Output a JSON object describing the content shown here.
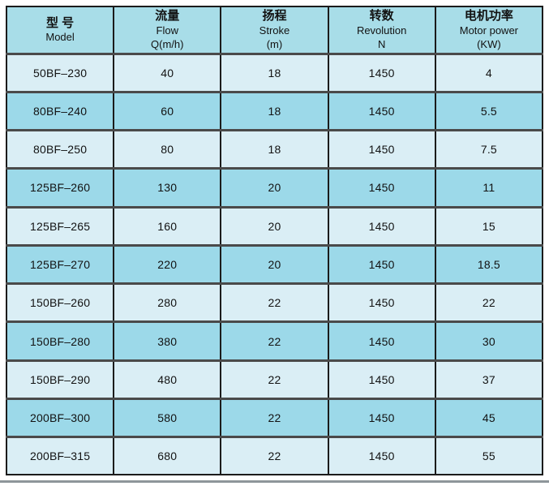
{
  "chart_data": {
    "type": "table",
    "columns": [
      {
        "zh": "型 号",
        "en": "Model",
        "sub": ""
      },
      {
        "zh": "流量",
        "en": "Flow",
        "sub": "Q(m/h)"
      },
      {
        "zh": "扬程",
        "en": "Stroke",
        "sub": "(m)"
      },
      {
        "zh": "转数",
        "en": "Revolution",
        "sub": "N"
      },
      {
        "zh": "电机功率",
        "en": "Motor power",
        "sub": "(KW)"
      }
    ],
    "rows": [
      {
        "model": "50BF–230",
        "flow": "40",
        "stroke": "18",
        "revolution": "1450",
        "motor_power": "4"
      },
      {
        "model": "80BF–240",
        "flow": "60",
        "stroke": "18",
        "revolution": "1450",
        "motor_power": "5.5"
      },
      {
        "model": "80BF–250",
        "flow": "80",
        "stroke": "18",
        "revolution": "1450",
        "motor_power": "7.5"
      },
      {
        "model": "125BF–260",
        "flow": "130",
        "stroke": "20",
        "revolution": "1450",
        "motor_power": "11"
      },
      {
        "model": "125BF–265",
        "flow": "160",
        "stroke": "20",
        "revolution": "1450",
        "motor_power": "15"
      },
      {
        "model": "125BF–270",
        "flow": "220",
        "stroke": "20",
        "revolution": "1450",
        "motor_power": "18.5"
      },
      {
        "model": "150BF–260",
        "flow": "280",
        "stroke": "22",
        "revolution": "1450",
        "motor_power": "22"
      },
      {
        "model": "150BF–280",
        "flow": "380",
        "stroke": "22",
        "revolution": "1450",
        "motor_power": "30"
      },
      {
        "model": "150BF–290",
        "flow": "480",
        "stroke": "22",
        "revolution": "1450",
        "motor_power": "37"
      },
      {
        "model": "200BF–300",
        "flow": "580",
        "stroke": "22",
        "revolution": "1450",
        "motor_power": "45"
      },
      {
        "model": "200BF–315",
        "flow": "680",
        "stroke": "22",
        "revolution": "1450",
        "motor_power": "55"
      }
    ],
    "colors": {
      "header_bg": "#a8dde8",
      "row_light": "#daeef5",
      "row_dark": "#9cd9e9",
      "cell_border": "#1b1b1b",
      "row_separator": "#4a4a4a",
      "bottom_rule": "#8e969a"
    },
    "legend_position": "none",
    "grid": true
  }
}
